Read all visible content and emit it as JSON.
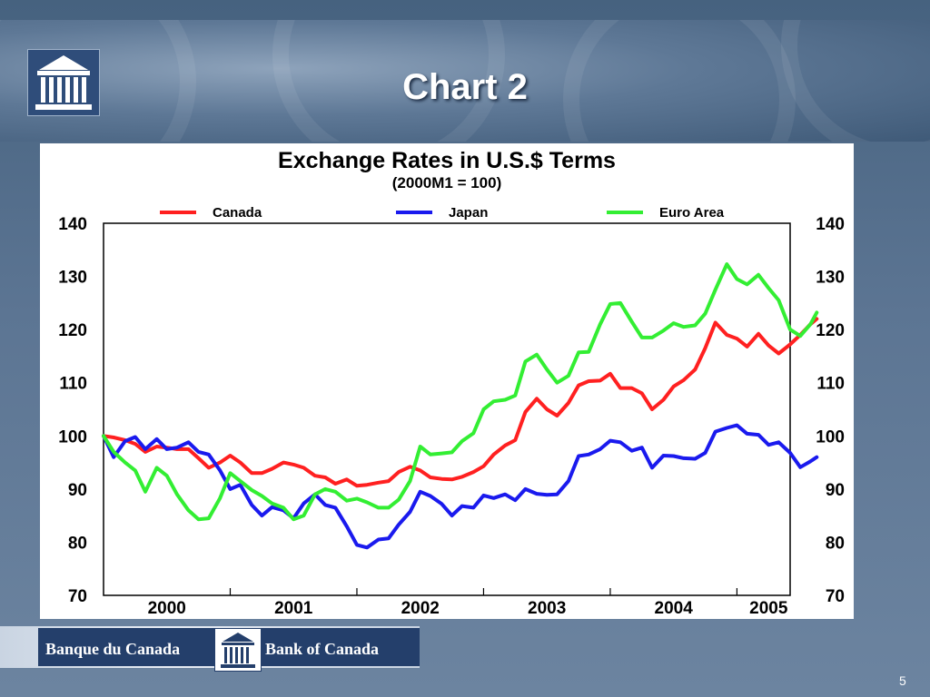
{
  "slide": {
    "title": "Chart 2",
    "page_number": "5",
    "footer_fr": "Banque du Canada",
    "footer_en": "Bank of Canada",
    "logo_icon": "bank-building-icon"
  },
  "colors": {
    "canada": "#ff2020",
    "japan": "#1a1aee",
    "euro": "#33ee33"
  },
  "chart_data": {
    "type": "line",
    "title": "Exchange Rates in U.S.$ Terms",
    "subtitle": "(2000M1 = 100)",
    "xlabel": "",
    "ylabel": "",
    "ylim": [
      70,
      140
    ],
    "yticks": [
      140,
      130,
      120,
      110,
      100,
      90,
      80,
      70
    ],
    "xlim": [
      2000.0,
      2005.42
    ],
    "xticks": [
      {
        "label": "2000",
        "x": 2000.5
      },
      {
        "label": "2001",
        "x": 2001.5
      },
      {
        "label": "2002",
        "x": 2002.5
      },
      {
        "label": "2003",
        "x": 2003.5
      },
      {
        "label": "2004",
        "x": 2004.5
      },
      {
        "label": "2005",
        "x": 2005.25
      }
    ],
    "legend_position": "top",
    "grid": false,
    "series": [
      {
        "name": "Canada",
        "color": "#ff2020",
        "points": [
          [
            2000.0,
            100
          ],
          [
            2000.08,
            99.7
          ],
          [
            2000.17,
            99.2
          ],
          [
            2000.25,
            98.5
          ],
          [
            2000.33,
            97
          ],
          [
            2000.42,
            98
          ],
          [
            2000.5,
            97.8
          ],
          [
            2000.58,
            97.5
          ],
          [
            2000.67,
            97.5
          ],
          [
            2000.75,
            95.8
          ],
          [
            2000.83,
            94
          ],
          [
            2000.92,
            95
          ],
          [
            2001.0,
            96.3
          ],
          [
            2001.08,
            95
          ],
          [
            2001.17,
            93
          ],
          [
            2001.25,
            93
          ],
          [
            2001.33,
            93.8
          ],
          [
            2001.42,
            95
          ],
          [
            2001.5,
            94.6
          ],
          [
            2001.58,
            94
          ],
          [
            2001.67,
            92.5
          ],
          [
            2001.75,
            92.2
          ],
          [
            2001.83,
            91
          ],
          [
            2001.92,
            91.8
          ],
          [
            2002.0,
            90.6
          ],
          [
            2002.08,
            90.8
          ],
          [
            2002.17,
            91.2
          ],
          [
            2002.25,
            91.5
          ],
          [
            2002.33,
            93.2
          ],
          [
            2002.42,
            94.2
          ],
          [
            2002.5,
            93.5
          ],
          [
            2002.58,
            92.2
          ],
          [
            2002.67,
            91.9
          ],
          [
            2002.75,
            91.8
          ],
          [
            2002.83,
            92.3
          ],
          [
            2002.92,
            93.2
          ],
          [
            2003.0,
            94.3
          ],
          [
            2003.08,
            96.5
          ],
          [
            2003.17,
            98.2
          ],
          [
            2003.25,
            99.2
          ],
          [
            2003.33,
            104.5
          ],
          [
            2003.42,
            107
          ],
          [
            2003.5,
            105
          ],
          [
            2003.58,
            103.8
          ],
          [
            2003.67,
            106.2
          ],
          [
            2003.75,
            109.5
          ],
          [
            2003.83,
            110.3
          ],
          [
            2003.92,
            110.4
          ],
          [
            2004.0,
            111.7
          ],
          [
            2004.08,
            109
          ],
          [
            2004.17,
            109
          ],
          [
            2004.25,
            108
          ],
          [
            2004.33,
            105
          ],
          [
            2004.42,
            106.8
          ],
          [
            2004.5,
            109.3
          ],
          [
            2004.58,
            110.5
          ],
          [
            2004.67,
            112.5
          ],
          [
            2004.75,
            116.5
          ],
          [
            2004.83,
            121.3
          ],
          [
            2004.92,
            119
          ],
          [
            2005.0,
            118.3
          ],
          [
            2005.08,
            116.8
          ],
          [
            2005.17,
            119.2
          ],
          [
            2005.25,
            117
          ],
          [
            2005.33,
            115.5
          ],
          [
            2005.42,
            117.2
          ],
          [
            2005.5,
            119
          ],
          [
            2005.58,
            121
          ],
          [
            2005.63,
            122
          ]
        ]
      },
      {
        "name": "Japan",
        "color": "#1a1aee",
        "points": [
          [
            2000.0,
            100
          ],
          [
            2000.08,
            96
          ],
          [
            2000.17,
            99
          ],
          [
            2000.25,
            99.8
          ],
          [
            2000.33,
            97.5
          ],
          [
            2000.42,
            99.4
          ],
          [
            2000.5,
            97.5
          ],
          [
            2000.58,
            97.8
          ],
          [
            2000.67,
            98.8
          ],
          [
            2000.75,
            97
          ],
          [
            2000.83,
            96.5
          ],
          [
            2000.92,
            93.5
          ],
          [
            2001.0,
            90
          ],
          [
            2001.08,
            90.8
          ],
          [
            2001.17,
            87
          ],
          [
            2001.25,
            85
          ],
          [
            2001.33,
            86.6
          ],
          [
            2001.42,
            86
          ],
          [
            2001.5,
            84.5
          ],
          [
            2001.58,
            87.3
          ],
          [
            2001.67,
            89
          ],
          [
            2001.75,
            87
          ],
          [
            2001.83,
            86.5
          ],
          [
            2001.92,
            83
          ],
          [
            2002.0,
            79.5
          ],
          [
            2002.08,
            79
          ],
          [
            2002.17,
            80.5
          ],
          [
            2002.25,
            80.7
          ],
          [
            2002.33,
            83.3
          ],
          [
            2002.42,
            85.7
          ],
          [
            2002.5,
            89.5
          ],
          [
            2002.58,
            88.7
          ],
          [
            2002.67,
            87.2
          ],
          [
            2002.75,
            85
          ],
          [
            2002.83,
            86.8
          ],
          [
            2002.92,
            86.5
          ],
          [
            2003.0,
            88.8
          ],
          [
            2003.08,
            88.3
          ],
          [
            2003.17,
            89
          ],
          [
            2003.25,
            87.9
          ],
          [
            2003.33,
            90
          ],
          [
            2003.42,
            89.1
          ],
          [
            2003.5,
            88.9
          ],
          [
            2003.58,
            89
          ],
          [
            2003.67,
            91.5
          ],
          [
            2003.75,
            96.2
          ],
          [
            2003.83,
            96.5
          ],
          [
            2003.92,
            97.5
          ],
          [
            2004.0,
            99.1
          ],
          [
            2004.08,
            98.8
          ],
          [
            2004.17,
            97.2
          ],
          [
            2004.25,
            97.8
          ],
          [
            2004.33,
            94
          ],
          [
            2004.42,
            96.3
          ],
          [
            2004.5,
            96.2
          ],
          [
            2004.58,
            95.8
          ],
          [
            2004.67,
            95.7
          ],
          [
            2004.75,
            96.8
          ],
          [
            2004.83,
            100.8
          ],
          [
            2004.92,
            101.5
          ],
          [
            2005.0,
            102
          ],
          [
            2005.08,
            100.4
          ],
          [
            2005.17,
            100.2
          ],
          [
            2005.25,
            98.3
          ],
          [
            2005.33,
            98.8
          ],
          [
            2005.42,
            96.8
          ],
          [
            2005.5,
            94.1
          ],
          [
            2005.58,
            95.2
          ],
          [
            2005.63,
            96
          ]
        ]
      },
      {
        "name": "Euro Area",
        "color": "#33ee33",
        "points": [
          [
            2000.0,
            100
          ],
          [
            2000.08,
            97
          ],
          [
            2000.17,
            95
          ],
          [
            2000.25,
            93.5
          ],
          [
            2000.33,
            89.5
          ],
          [
            2000.42,
            94
          ],
          [
            2000.5,
            92.5
          ],
          [
            2000.58,
            89
          ],
          [
            2000.67,
            86
          ],
          [
            2000.75,
            84.3
          ],
          [
            2000.83,
            84.5
          ],
          [
            2000.92,
            88.3
          ],
          [
            2001.0,
            93
          ],
          [
            2001.08,
            91.5
          ],
          [
            2001.17,
            89.8
          ],
          [
            2001.25,
            88.7
          ],
          [
            2001.33,
            87.3
          ],
          [
            2001.42,
            86.5
          ],
          [
            2001.5,
            84.3
          ],
          [
            2001.58,
            85
          ],
          [
            2001.67,
            89
          ],
          [
            2001.75,
            90
          ],
          [
            2001.83,
            89.5
          ],
          [
            2001.92,
            87.8
          ],
          [
            2002.0,
            88.2
          ],
          [
            2002.08,
            87.5
          ],
          [
            2002.17,
            86.5
          ],
          [
            2002.25,
            86.5
          ],
          [
            2002.33,
            88
          ],
          [
            2002.42,
            91.5
          ],
          [
            2002.5,
            98
          ],
          [
            2002.58,
            96.5
          ],
          [
            2002.67,
            96.7
          ],
          [
            2002.75,
            96.9
          ],
          [
            2002.83,
            99
          ],
          [
            2002.92,
            100.5
          ],
          [
            2003.0,
            105
          ],
          [
            2003.08,
            106.5
          ],
          [
            2003.17,
            106.8
          ],
          [
            2003.25,
            107.6
          ],
          [
            2003.33,
            114
          ],
          [
            2003.42,
            115.3
          ],
          [
            2003.5,
            112.5
          ],
          [
            2003.58,
            110
          ],
          [
            2003.67,
            111.3
          ],
          [
            2003.75,
            115.7
          ],
          [
            2003.83,
            115.8
          ],
          [
            2003.92,
            121
          ],
          [
            2004.0,
            124.8
          ],
          [
            2004.08,
            125
          ],
          [
            2004.17,
            121.5
          ],
          [
            2004.25,
            118.5
          ],
          [
            2004.33,
            118.5
          ],
          [
            2004.42,
            119.8
          ],
          [
            2004.5,
            121.2
          ],
          [
            2004.58,
            120.5
          ],
          [
            2004.67,
            120.8
          ],
          [
            2004.75,
            123
          ],
          [
            2004.83,
            127.5
          ],
          [
            2004.92,
            132.3
          ],
          [
            2005.0,
            129.5
          ],
          [
            2005.08,
            128.5
          ],
          [
            2005.17,
            130.3
          ],
          [
            2005.25,
            127.8
          ],
          [
            2005.33,
            125.5
          ],
          [
            2005.42,
            120
          ],
          [
            2005.5,
            118.8
          ],
          [
            2005.58,
            121
          ],
          [
            2005.63,
            123.2
          ]
        ]
      }
    ]
  }
}
